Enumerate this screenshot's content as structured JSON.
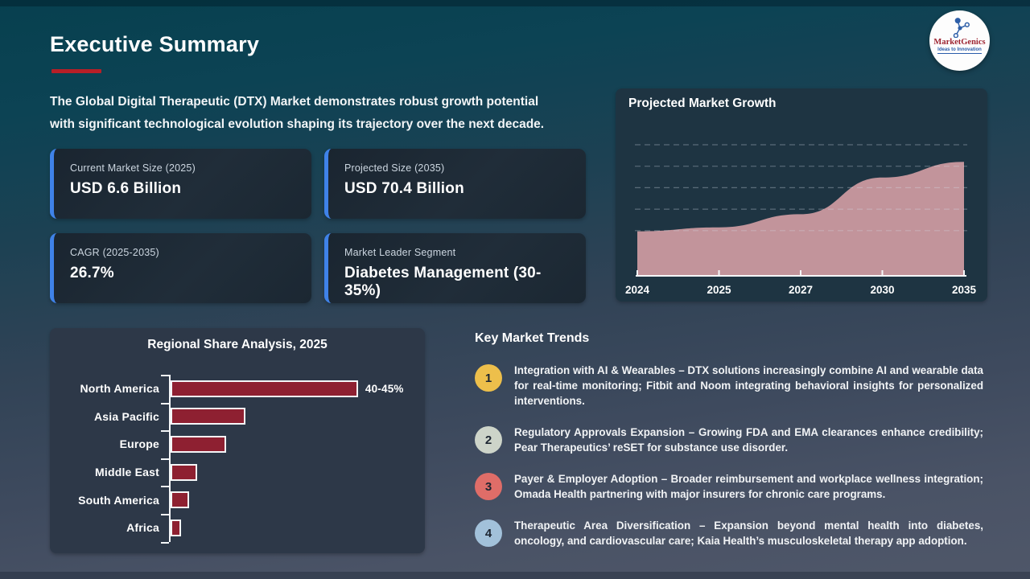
{
  "header": {
    "title": "Executive Summary",
    "intro_line1": "The Global Digital Therapeutic (DTX) Market demonstrates robust growth potential",
    "intro_line2": "with significant technological evolution shaping its trajectory over the next decade.",
    "accent_color": "#b81f27"
  },
  "logo": {
    "name": "MarketGenics",
    "tagline": "Ideas to Innovation",
    "icon_color": "#2e5fa8"
  },
  "stats": [
    {
      "label": "Current Market Size (2025)",
      "value": "USD 6.6 Billion"
    },
    {
      "label": "Projected Size (2035)",
      "value": "USD 70.4 Billion"
    },
    {
      "label": "CAGR (2025-2035)",
      "value": "26.7%"
    },
    {
      "label": "Market Leader Segment",
      "value": "Diabetes Management (30-35%)"
    }
  ],
  "chart_data": [
    {
      "type": "area",
      "title": "Projected Market Growth",
      "x": [
        "2024",
        "2025",
        "2027",
        "2030",
        "2035"
      ],
      "values": [
        34,
        37,
        47,
        75,
        87
      ],
      "ylim": [
        0,
        100
      ],
      "units": "relative market size (no y-axis labels shown)",
      "area_color": "#c2949b",
      "grid": "dashed horizontal gridlines, no y tick labels",
      "legend": "none"
    },
    {
      "type": "bar",
      "title": "Regional Share Analysis, 2025",
      "orientation": "horizontal",
      "categories": [
        "North America",
        "Asia Pacific",
        "Europe",
        "Middle East",
        "South America",
        "Africa"
      ],
      "values": [
        42.5,
        17,
        12.5,
        6,
        4.2,
        2.4
      ],
      "value_labels": [
        "40-45%",
        "",
        "",
        "",
        "",
        ""
      ],
      "xlim": [
        0,
        50
      ],
      "bar_color": "#8e2031",
      "legend": "none"
    }
  ],
  "trends": {
    "heading": "Key Market Trends",
    "items": [
      {
        "num": "1",
        "color": "#edbf4b",
        "text": "Integration with AI & Wearables – DTX solutions increasingly combine AI and wearable data for real-time monitoring; Fitbit and Noom integrating behavioral insights for personalized interventions."
      },
      {
        "num": "2",
        "color": "#cdd4c9",
        "text": "Regulatory Approvals Expansion – Growing FDA and EMA clearances enhance credibility; Pear Therapeutics’ reSET for substance use disorder."
      },
      {
        "num": "3",
        "color": "#df6d68",
        "text": "Payer & Employer Adoption – Broader reimbursement and workplace wellness integration; Omada Health partnering with major insurers for chronic care programs."
      },
      {
        "num": "4",
        "color": "#a2c1da",
        "text": "Therapeutic Area Diversification – Expansion beyond mental health into diabetes, oncology, and cardiovascular care; Kaia Health’s musculoskeletal therapy app adoption."
      }
    ]
  }
}
